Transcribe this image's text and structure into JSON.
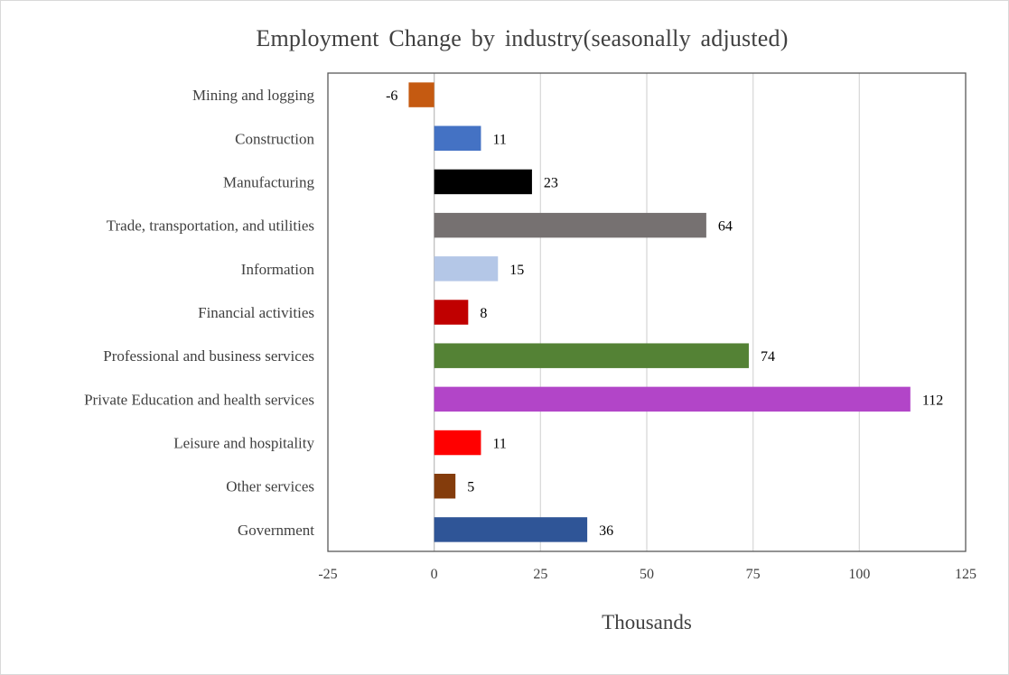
{
  "chart_data": {
    "type": "bar",
    "orientation": "horizontal",
    "title": "Employment Change by industry(seasonally adjusted)",
    "xlabel": "Thousands",
    "ylabel": "",
    "xlim": [
      -25,
      125
    ],
    "x_ticks": [
      -25,
      0,
      25,
      50,
      75,
      100,
      125
    ],
    "grid": true,
    "legend": "none",
    "categories": [
      "Mining and logging",
      "Construction",
      "Manufacturing",
      "Trade, transportation, and utilities",
      "Information",
      "Financial activities",
      "Professional and business services",
      "Private Education and health services",
      "Leisure and hospitality",
      "Other services",
      "Government"
    ],
    "values": [
      -6,
      11,
      23,
      64,
      15,
      8,
      74,
      112,
      11,
      5,
      36
    ],
    "colors": [
      "#c55a11",
      "#4472c4",
      "#000000",
      "#767171",
      "#b4c7e7",
      "#c00000",
      "#548235",
      "#b245c8",
      "#ff0000",
      "#843c0c",
      "#2f5597"
    ]
  }
}
